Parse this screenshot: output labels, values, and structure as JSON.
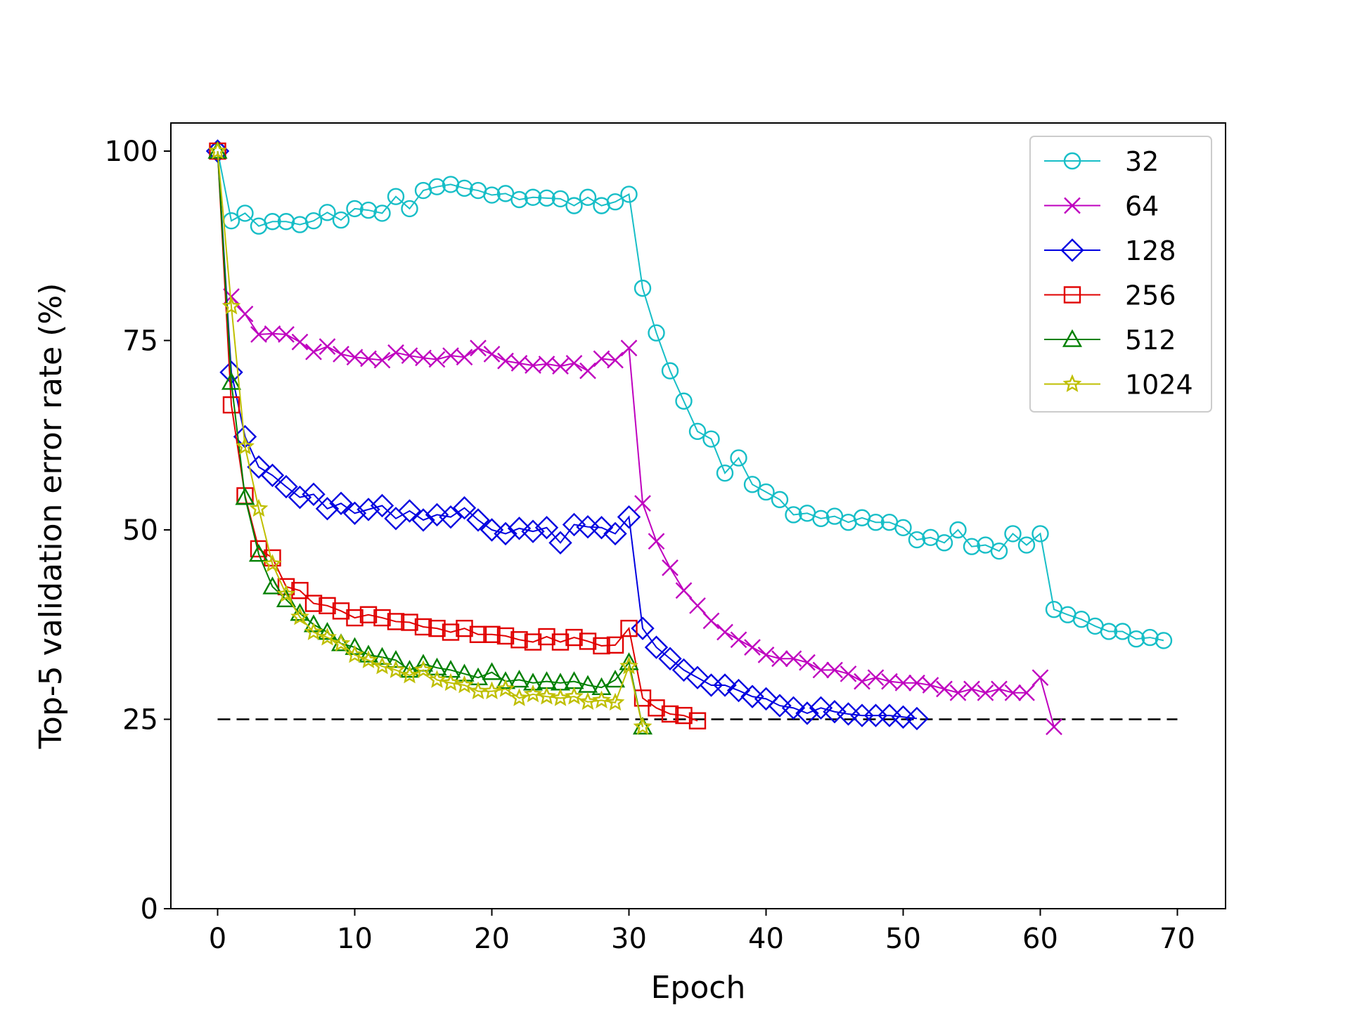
{
  "chart_data": {
    "type": "line",
    "title": "",
    "xlabel": "Epoch",
    "ylabel": "Top-5 validation error rate (%)",
    "xlim": [
      -3.5,
      73.5
    ],
    "ylim": [
      0,
      103.7
    ],
    "xticks": [
      0,
      10,
      20,
      30,
      40,
      50,
      60,
      70
    ],
    "yticks": [
      0,
      25,
      50,
      75,
      100
    ],
    "grid": false,
    "legend_position": "top-right",
    "reference_line": {
      "y": 25,
      "x_start": 0,
      "x_end": 70,
      "style": "dashed",
      "color": "#000000"
    },
    "series": [
      {
        "name": "32",
        "color": "#17bec7",
        "marker": "circle",
        "x": [
          0,
          1,
          2,
          3,
          4,
          5,
          6,
          7,
          8,
          9,
          10,
          11,
          12,
          13,
          14,
          15,
          16,
          17,
          18,
          19,
          20,
          21,
          22,
          23,
          24,
          25,
          26,
          27,
          28,
          29,
          30,
          31,
          32,
          33,
          34,
          35,
          36,
          37,
          38,
          39,
          40,
          41,
          42,
          43,
          44,
          45,
          46,
          47,
          48,
          49,
          50,
          51,
          52,
          53,
          54,
          55,
          56,
          57,
          58,
          59,
          60,
          61,
          62,
          63,
          64,
          65,
          66,
          67,
          68,
          69
        ],
        "y": [
          100,
          90.8,
          91.8,
          90.1,
          90.7,
          90.7,
          90.3,
          90.8,
          91.9,
          90.9,
          92.4,
          92.2,
          91.8,
          94.0,
          92.4,
          94.8,
          95.3,
          95.6,
          95.1,
          94.8,
          94.2,
          94.4,
          93.6,
          93.9,
          93.8,
          93.7,
          92.8,
          93.9,
          92.8,
          93.3,
          94.3,
          81.9,
          76.0,
          71.0,
          67.0,
          63.0,
          62.0,
          57.5,
          59.5,
          56.0,
          55.0,
          54.0,
          52.0,
          52.2,
          51.5,
          51.8,
          51.0,
          51.6,
          51.0,
          51.0,
          50.3,
          48.7,
          49.0,
          48.3,
          50.0,
          47.8,
          48.0,
          47.2,
          49.5,
          48.0,
          49.5,
          39.5,
          38.8,
          38.2,
          37.3,
          36.6,
          36.6,
          35.6,
          35.8,
          35.4
        ]
      },
      {
        "name": "64",
        "color": "#bf00bf",
        "marker": "x",
        "x": [
          1,
          2,
          3,
          4,
          5,
          6,
          7,
          8,
          9,
          10,
          11,
          12,
          13,
          14,
          15,
          16,
          17,
          18,
          19,
          20,
          21,
          22,
          23,
          24,
          25,
          26,
          27,
          28,
          29,
          30,
          31,
          32,
          33,
          34,
          35,
          36,
          37,
          38,
          39,
          40,
          41,
          42,
          43,
          44,
          45,
          46,
          47,
          48,
          49,
          50,
          51,
          52,
          53,
          54,
          55,
          56,
          57,
          58,
          59,
          60,
          61
        ],
        "y": [
          80.8,
          78.5,
          75.8,
          75.9,
          75.8,
          74.8,
          73.5,
          74.2,
          73.2,
          72.8,
          72.6,
          72.4,
          73.4,
          73.0,
          72.7,
          72.5,
          73.0,
          72.8,
          74.0,
          73.2,
          72.3,
          72.0,
          71.7,
          71.9,
          71.6,
          72.0,
          71.0,
          72.6,
          72.4,
          74.0,
          53.5,
          48.5,
          45.0,
          42.0,
          40.0,
          38.0,
          36.5,
          35.5,
          34.5,
          33.5,
          33.0,
          33.0,
          32.5,
          31.5,
          31.5,
          31.0,
          30.0,
          30.5,
          30.0,
          29.8,
          29.8,
          29.5,
          29.0,
          28.5,
          29.0,
          28.5,
          29.0,
          28.5,
          28.5,
          30.5,
          24.0
        ]
      },
      {
        "name": "128",
        "color": "#0000e0",
        "marker": "diamond",
        "x": [
          0,
          1,
          2,
          3,
          4,
          5,
          6,
          7,
          8,
          9,
          10,
          11,
          12,
          13,
          14,
          15,
          16,
          17,
          18,
          19,
          20,
          21,
          22,
          23,
          24,
          25,
          26,
          27,
          28,
          29,
          30,
          31,
          32,
          33,
          34,
          35,
          36,
          37,
          38,
          39,
          40,
          41,
          42,
          43,
          44,
          45,
          46,
          47,
          48,
          49,
          50,
          51
        ],
        "y": [
          100,
          70.8,
          62.3,
          58.3,
          57.2,
          55.7,
          54.3,
          54.7,
          52.8,
          53.5,
          52.2,
          52.7,
          53.2,
          51.5,
          52.5,
          51.3,
          52.0,
          51.7,
          52.9,
          51.3,
          50.0,
          49.5,
          50.2,
          49.8,
          50.3,
          48.3,
          50.7,
          50.4,
          50.3,
          49.5,
          51.7,
          37.0,
          34.5,
          33.0,
          31.5,
          30.5,
          29.5,
          29.5,
          28.8,
          28.0,
          27.7,
          26.8,
          26.5,
          25.8,
          26.5,
          26.0,
          25.7,
          25.5,
          25.5,
          25.5,
          25.3,
          25.1
        ]
      },
      {
        "name": "256",
        "color": "#e00000",
        "marker": "square",
        "x": [
          0,
          1,
          2,
          3,
          4,
          5,
          6,
          7,
          8,
          9,
          10,
          11,
          12,
          13,
          14,
          15,
          16,
          17,
          18,
          19,
          20,
          21,
          22,
          23,
          24,
          25,
          26,
          27,
          28,
          29,
          30,
          31,
          32,
          33,
          34,
          35
        ],
        "y": [
          100,
          66.5,
          54.5,
          47.5,
          46.3,
          42.5,
          42.0,
          40.3,
          40.0,
          39.3,
          38.4,
          38.8,
          38.4,
          37.9,
          37.8,
          37.2,
          37.0,
          36.5,
          37.0,
          36.2,
          36.2,
          36.0,
          35.5,
          35.2,
          35.9,
          35.2,
          35.8,
          35.3,
          34.7,
          34.8,
          37.0,
          27.8,
          26.5,
          25.7,
          25.5,
          24.8
        ]
      },
      {
        "name": "512",
        "color": "#008000",
        "marker": "triangle",
        "x": [
          0,
          1,
          2,
          3,
          4,
          5,
          6,
          7,
          8,
          9,
          10,
          11,
          12,
          13,
          14,
          15,
          16,
          17,
          18,
          19,
          20,
          21,
          22,
          23,
          24,
          25,
          26,
          27,
          28,
          29,
          30,
          31
        ],
        "y": [
          100,
          69.5,
          54.3,
          46.8,
          42.5,
          40.8,
          39.0,
          37.5,
          36.5,
          35.0,
          34.5,
          33.5,
          33.2,
          32.8,
          31.5,
          32.3,
          31.8,
          31.5,
          31.0,
          30.5,
          31.2,
          30.0,
          30.2,
          29.8,
          30.0,
          29.8,
          30.0,
          29.5,
          29.2,
          30.2,
          32.5,
          24.0
        ]
      },
      {
        "name": "1024",
        "color": "#bfbf00",
        "marker": "star",
        "x": [
          0,
          1,
          2,
          3,
          4,
          5,
          6,
          7,
          8,
          9,
          10,
          11,
          12,
          13,
          14,
          15,
          16,
          17,
          18,
          19,
          20,
          21,
          22,
          23,
          24,
          25,
          26,
          27,
          28,
          29,
          30,
          31
        ],
        "y": [
          100,
          79.5,
          61.0,
          52.8,
          45.5,
          41.5,
          38.5,
          36.5,
          35.8,
          35.0,
          33.5,
          32.8,
          32.0,
          31.5,
          30.8,
          31.5,
          30.2,
          29.8,
          29.5,
          28.7,
          28.7,
          29.0,
          27.8,
          28.3,
          28.0,
          27.8,
          28.0,
          27.3,
          27.5,
          27.2,
          32.0,
          24.0
        ]
      }
    ]
  }
}
